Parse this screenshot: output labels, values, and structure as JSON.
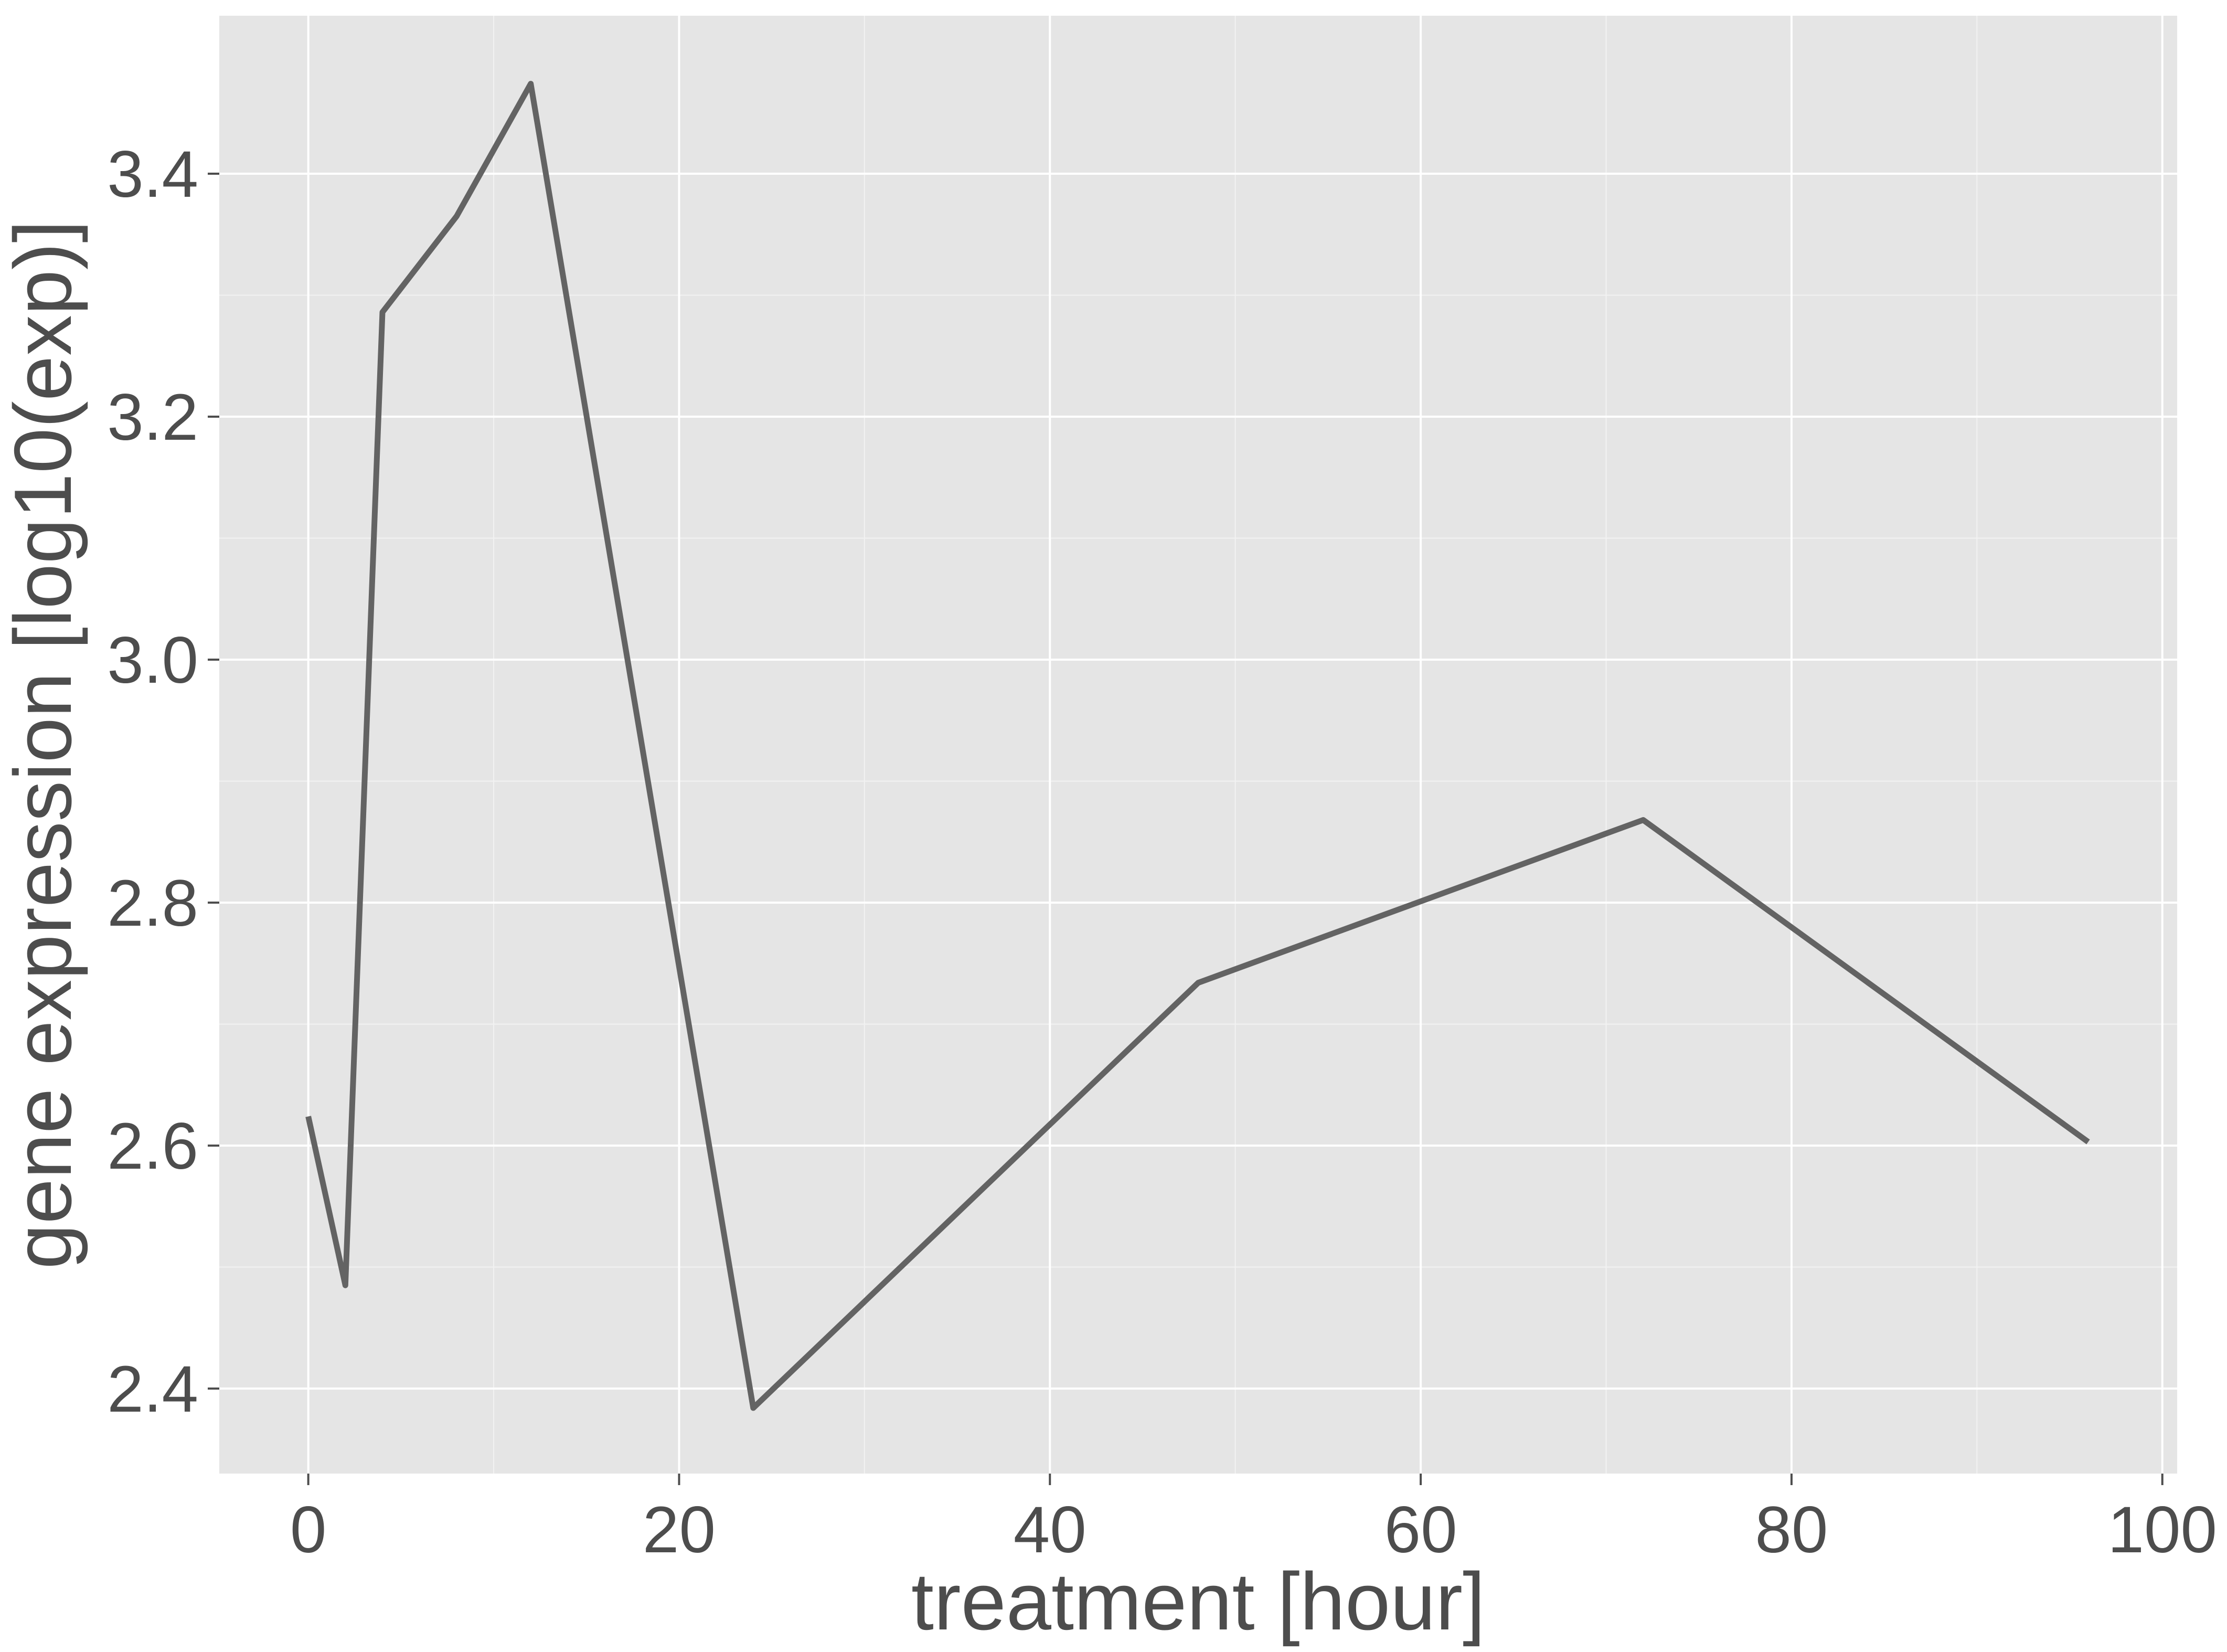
{
  "chart_data": {
    "type": "line",
    "title": "",
    "xlabel": "treatment [hour]",
    "ylabel": "gene expression [log10(exp)]",
    "xlim": [
      -4.8,
      100.8
    ],
    "ylim": [
      2.33,
      3.53
    ],
    "x_ticks": [
      0,
      20,
      40,
      60,
      80,
      100
    ],
    "y_ticks": [
      2.4,
      2.6,
      2.8,
      3.0,
      3.2,
      3.4
    ],
    "x_tick_labels": [
      "0",
      "20",
      "40",
      "60",
      "80",
      "100"
    ],
    "y_tick_labels": [
      "2.4",
      "2.6",
      "2.8",
      "3.0",
      "3.2",
      "3.4"
    ],
    "grid": true,
    "legend": "none",
    "colors": {
      "panel": "#e5e5e5",
      "grid": "#ffffff",
      "line": "#636363",
      "text": "#4d4d4d"
    },
    "series": [
      {
        "x": [
          0,
          2,
          4,
          8,
          12,
          24,
          48,
          72,
          96
        ],
        "y": [
          2.624,
          2.485,
          3.286,
          3.365,
          3.474,
          2.384,
          2.734,
          2.868,
          2.603
        ]
      }
    ]
  }
}
